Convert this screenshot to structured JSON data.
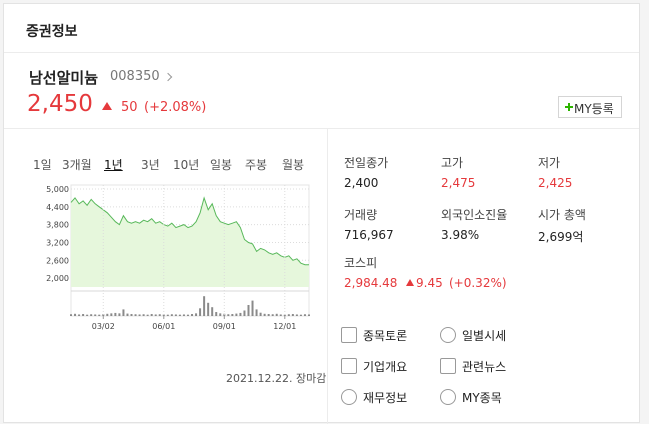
{
  "header": {
    "title": "증권정보"
  },
  "stock": {
    "name": "남선알미늄",
    "code": "008350",
    "price": "2,450",
    "change": "50",
    "change_rate": "(+2.08%)",
    "my_button": "MY등록"
  },
  "periods": {
    "items": [
      "1일",
      "3개월",
      "1년",
      "3년",
      "10년",
      "일봉",
      "주봉",
      "월봉"
    ],
    "active_index": 2
  },
  "chart_data": {
    "type": "area",
    "categories": [
      null,
      null,
      null,
      null,
      null,
      null,
      null,
      null,
      "03/02",
      null,
      null,
      null,
      null,
      null,
      null,
      null,
      null,
      null,
      null,
      null,
      null,
      null,
      null,
      "06/01",
      null,
      null,
      null,
      null,
      null,
      null,
      null,
      null,
      null,
      null,
      null,
      null,
      null,
      null,
      "09/01",
      null,
      null,
      null,
      null,
      null,
      null,
      null,
      null,
      null,
      null,
      null,
      null,
      null,
      null,
      "12/01",
      null,
      null,
      null,
      null,
      null,
      null
    ],
    "series": [
      {
        "color": "#58b85a",
        "fill": "#e6f7dc",
        "values": [
          4550,
          4700,
          4500,
          4600,
          4450,
          4650,
          4500,
          4400,
          4300,
          4200,
          4050,
          3900,
          3800,
          4100,
          3900,
          3850,
          3900,
          3850,
          3950,
          3900,
          4000,
          3850,
          3900,
          3800,
          3750,
          3850,
          3700,
          3750,
          3800,
          3700,
          3750,
          3900,
          4200,
          4700,
          4300,
          4500,
          4100,
          3900,
          3850,
          3800,
          3850,
          3900,
          3700,
          3300,
          3200,
          3150,
          2900,
          3000,
          2950,
          2850,
          2800,
          2850,
          2750,
          2700,
          2750,
          2600,
          2650,
          2500,
          2450,
          2450
        ]
      },
      {
        "type": "bar",
        "axis": "y2",
        "color": "#8a8a8a",
        "values": [
          8,
          10,
          7,
          9,
          6,
          8,
          7,
          6,
          9,
          10,
          12,
          14,
          12,
          30,
          11,
          9,
          8,
          7,
          8,
          6,
          9,
          7,
          8,
          7,
          6,
          8,
          7,
          6,
          7,
          6,
          9,
          12,
          35,
          90,
          60,
          40,
          18,
          12,
          10,
          8,
          9,
          11,
          14,
          25,
          50,
          70,
          30,
          15,
          10,
          9,
          8,
          10,
          7,
          6,
          8,
          9,
          7,
          6,
          8,
          7
        ]
      }
    ],
    "ylim": [
      1700,
      5000
    ],
    "yticks": [
      {
        "value": 2000,
        "label": "2,000"
      },
      {
        "value": 2600,
        "label": "2,600"
      },
      {
        "value": 3200,
        "label": "3,200"
      },
      {
        "value": 3800,
        "label": "3,800"
      },
      {
        "value": 4400,
        "label": "4,400"
      },
      {
        "value": 5000,
        "label": "5,000"
      }
    ],
    "y2lim": [
      0,
      100
    ],
    "grid": true
  },
  "caption": "2021.12.22. 장마감",
  "info": [
    {
      "label": "전일종가",
      "value": "2,400",
      "up": false
    },
    {
      "label": "고가",
      "value": "2,475",
      "up": true
    },
    {
      "label": "저가",
      "value": "2,425",
      "up": true
    },
    {
      "label": "거래량",
      "value": "716,967",
      "up": false
    },
    {
      "label": "외국인소진율",
      "value": "3.98%",
      "up": false
    },
    {
      "label": "시가 총액",
      "value": "2,699억",
      "up": false
    }
  ],
  "kospi": {
    "label": "코스피",
    "value": "2,984.48",
    "change": "9.45",
    "change_rate": "(+0.32%)"
  },
  "links": [
    "종목토론",
    "일별시세",
    "기업개요",
    "관련뉴스",
    "재무정보",
    "MY종목"
  ]
}
